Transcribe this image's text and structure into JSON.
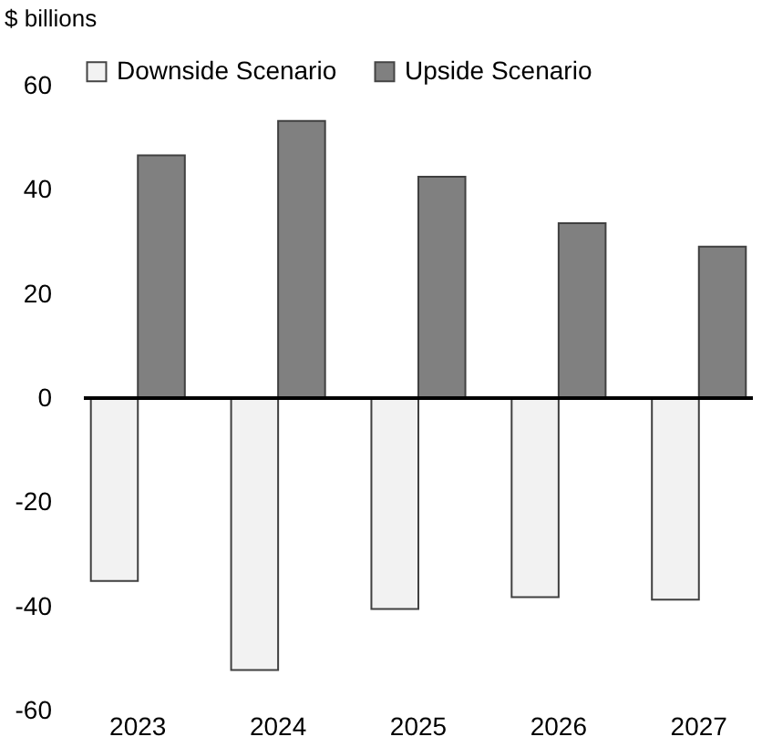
{
  "chart_data": {
    "type": "bar",
    "ylabel": "$ billions",
    "categories": [
      "2023",
      "2024",
      "2025",
      "2026",
      "2027"
    ],
    "series": [
      {
        "name": "Downside Scenario",
        "color": "#f2f2f2",
        "values": [
          -35.1,
          -52.2,
          -40.5,
          -38.2,
          -38.7
        ]
      },
      {
        "name": "Upside Scenario",
        "color": "#808080",
        "values": [
          46.6,
          53.2,
          42.5,
          33.6,
          29.1
        ]
      }
    ],
    "ylim": [
      -60,
      60
    ],
    "yticks": [
      -60,
      -40,
      -20,
      0,
      20,
      40,
      60
    ],
    "grid": false,
    "legend": "top",
    "ref_lines": [
      {
        "axis": "y",
        "value": 0,
        "color": "#000000"
      }
    ]
  }
}
